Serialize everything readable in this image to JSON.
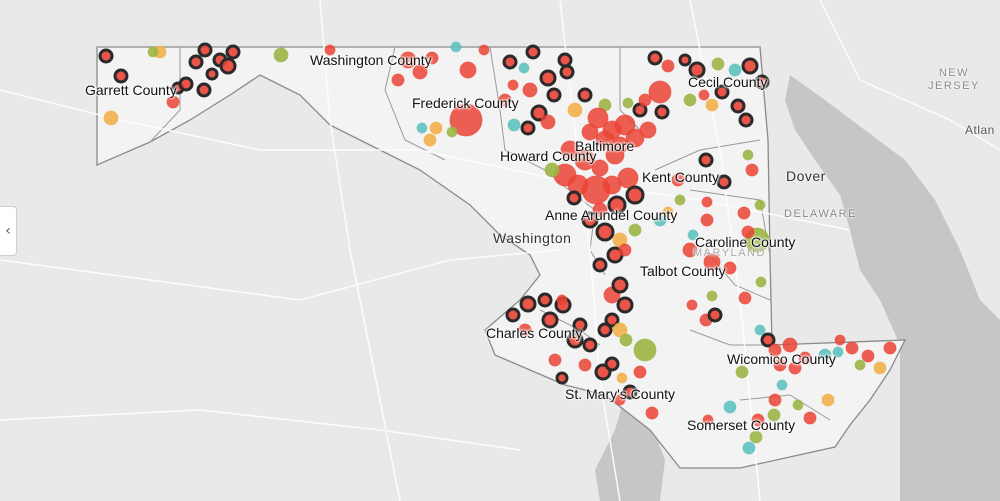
{
  "colors": {
    "land": "#e9e9e9",
    "water": "#c6c6c6",
    "state_fill": "#f3f3f3",
    "border": "#8a8a8a",
    "road": "#ffffff",
    "marker_red": "#ea4335",
    "marker_black": "#2a2a2a",
    "marker_olive": "#9bb545",
    "marker_teal": "#5ec2c0",
    "marker_orange": "#f2b04a"
  },
  "icons": {
    "collapse": "chevron-left-icon"
  },
  "collapse_glyph": "‹",
  "county_labels": [
    "Washington County",
    "Garrett County",
    "Frederick County",
    "Cecil County",
    "Baltimore",
    "Howard County",
    "Kent County",
    "Anne Arundel County",
    "Caroline County",
    "Talbot County",
    "Charles County",
    "Wicomico County",
    "St. Mary's County",
    "Somerset County"
  ],
  "basemap_labels": {
    "city_washington": "Washington",
    "city_dover": "Dover",
    "state_nj_line1": "NEW",
    "state_nj_line2": "JERSEY",
    "state_delaware": "DELAWARE",
    "state_maryland": "MARYLAND",
    "city_atlantic": "Atlan"
  }
}
